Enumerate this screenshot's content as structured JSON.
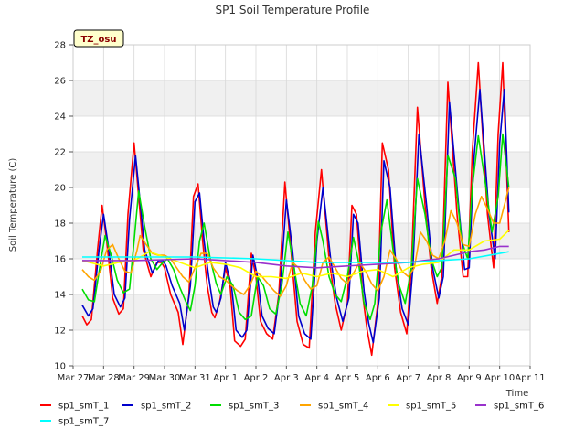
{
  "chart_data": {
    "type": "line",
    "title": "SP1 Soil Temperature Profile",
    "xlabel": "Time",
    "ylabel": "Soil Temperature (C)",
    "badge": "TZ_osu",
    "ylim": [
      10,
      28
    ],
    "yticks": [
      10,
      12,
      14,
      16,
      18,
      20,
      22,
      24,
      26,
      28
    ],
    "xlim": [
      0,
      15
    ],
    "xticks": [
      {
        "x": 0,
        "label": "Mar 27"
      },
      {
        "x": 1,
        "label": "Mar 28"
      },
      {
        "x": 2,
        "label": "Mar 29"
      },
      {
        "x": 3,
        "label": "Mar 30"
      },
      {
        "x": 4,
        "label": "Mar 31"
      },
      {
        "x": 5,
        "label": "Apr 1"
      },
      {
        "x": 6,
        "label": "Apr 2"
      },
      {
        "x": 7,
        "label": "Apr 3"
      },
      {
        "x": 8,
        "label": "Apr 4"
      },
      {
        "x": 9,
        "label": "Apr 5"
      },
      {
        "x": 10,
        "label": "Apr 6"
      },
      {
        "x": 11,
        "label": "Apr 7"
      },
      {
        "x": 12,
        "label": "Apr 8"
      },
      {
        "x": 13,
        "label": "Apr 9"
      },
      {
        "x": 14,
        "label": "Apr 10"
      },
      {
        "x": 15,
        "label": "Apr 11"
      }
    ],
    "series": [
      {
        "name": "sp1_smT_1",
        "color": "#ff0000",
        "x": [
          0.3,
          0.45,
          0.6,
          0.8,
          0.95,
          1.1,
          1.3,
          1.5,
          1.65,
          1.8,
          2.0,
          2.15,
          2.3,
          2.55,
          2.75,
          2.9,
          3.0,
          3.2,
          3.45,
          3.6,
          3.8,
          3.95,
          4.1,
          4.25,
          4.4,
          4.55,
          4.65,
          4.8,
          5.0,
          5.15,
          5.3,
          5.5,
          5.65,
          5.85,
          6.0,
          6.15,
          6.35,
          6.55,
          6.75,
          6.95,
          7.15,
          7.35,
          7.55,
          7.75,
          7.95,
          8.15,
          8.4,
          8.6,
          8.8,
          9.0,
          9.15,
          9.3,
          9.5,
          9.65,
          9.8,
          10.0,
          10.15,
          10.35,
          10.55,
          10.75,
          10.95,
          11.1,
          11.3,
          11.55,
          11.75,
          11.95,
          12.1,
          12.3,
          12.6,
          12.8,
          12.95,
          13.1,
          13.3,
          13.6,
          13.8,
          13.95,
          14.1,
          14.3
        ],
        "y": [
          12.8,
          12.3,
          12.6,
          16.5,
          19.0,
          17.0,
          13.8,
          12.9,
          13.2,
          18.5,
          22.5,
          19.5,
          16.5,
          15.0,
          15.8,
          15.8,
          15.5,
          14.0,
          13.0,
          11.2,
          14.0,
          19.5,
          20.2,
          17.0,
          14.5,
          13.0,
          12.7,
          13.5,
          15.5,
          14.5,
          11.4,
          11.1,
          11.5,
          16.3,
          15.0,
          12.5,
          11.8,
          11.5,
          14.0,
          20.3,
          16.5,
          12.5,
          11.2,
          11.0,
          17.5,
          21.0,
          16.0,
          13.5,
          12.0,
          13.5,
          19.0,
          18.5,
          14.0,
          12.0,
          10.6,
          13.5,
          22.5,
          21.0,
          15.5,
          13.0,
          11.8,
          15.5,
          24.5,
          19.0,
          15.5,
          13.5,
          15.0,
          25.9,
          18.5,
          15.0,
          15.0,
          22.0,
          27.0,
          18.5,
          15.5,
          23.0,
          27.0,
          17.5
        ]
      },
      {
        "name": "sp1_smT_2",
        "color": "#0000cc",
        "x": [
          0.3,
          0.5,
          0.65,
          0.85,
          1.0,
          1.15,
          1.35,
          1.55,
          1.7,
          1.85,
          2.05,
          2.2,
          2.35,
          2.6,
          2.8,
          2.95,
          3.05,
          3.25,
          3.5,
          3.65,
          3.85,
          4.0,
          4.15,
          4.3,
          4.45,
          4.6,
          4.7,
          4.85,
          5.0,
          5.2,
          5.35,
          5.55,
          5.7,
          5.9,
          6.05,
          6.2,
          6.4,
          6.6,
          6.8,
          7.0,
          7.2,
          7.4,
          7.6,
          7.8,
          8.0,
          8.2,
          8.45,
          8.65,
          8.85,
          9.05,
          9.2,
          9.35,
          9.55,
          9.7,
          9.85,
          10.05,
          10.2,
          10.4,
          10.6,
          10.8,
          11.0,
          11.15,
          11.35,
          11.6,
          11.8,
          12.0,
          12.15,
          12.35,
          12.65,
          12.85,
          13.0,
          13.15,
          13.35,
          13.65,
          13.85,
          14.0,
          14.15,
          14.3
        ],
        "y": [
          13.4,
          12.8,
          13.2,
          16.5,
          18.5,
          16.8,
          14.0,
          13.3,
          13.8,
          18.2,
          21.8,
          19.2,
          16.5,
          15.2,
          15.9,
          15.9,
          15.6,
          14.5,
          13.5,
          12.0,
          14.5,
          19.2,
          19.7,
          17.0,
          15.0,
          13.3,
          13.0,
          13.8,
          15.8,
          14.5,
          12.0,
          11.6,
          12.0,
          16.2,
          15.0,
          12.8,
          12.1,
          11.8,
          14.5,
          19.3,
          16.5,
          12.8,
          11.8,
          11.5,
          17.0,
          20.0,
          16.0,
          13.8,
          12.5,
          13.8,
          18.5,
          18.0,
          14.2,
          12.4,
          11.3,
          13.8,
          21.5,
          20.0,
          15.5,
          13.2,
          12.3,
          15.5,
          23.0,
          19.0,
          15.5,
          13.8,
          15.0,
          24.8,
          19.0,
          15.4,
          15.5,
          21.5,
          25.5,
          18.5,
          16.0,
          22.5,
          25.5,
          18.6
        ]
      },
      {
        "name": "sp1_smT_3",
        "color": "#00dd00",
        "x": [
          0.3,
          0.5,
          0.7,
          0.9,
          1.05,
          1.25,
          1.45,
          1.65,
          1.85,
          2.0,
          2.15,
          2.35,
          2.55,
          2.75,
          2.95,
          3.1,
          3.3,
          3.5,
          3.7,
          3.85,
          4.0,
          4.15,
          4.3,
          4.5,
          4.7,
          4.85,
          5.05,
          5.25,
          5.45,
          5.65,
          5.85,
          6.05,
          6.25,
          6.45,
          6.65,
          6.85,
          7.05,
          7.25,
          7.45,
          7.65,
          7.85,
          8.05,
          8.2,
          8.4,
          8.6,
          8.8,
          9.0,
          9.2,
          9.35,
          9.55,
          9.75,
          9.9,
          10.1,
          10.3,
          10.5,
          10.7,
          10.9,
          11.1,
          11.3,
          11.55,
          11.75,
          11.95,
          12.1,
          12.3,
          12.55,
          12.75,
          12.95,
          13.1,
          13.3,
          13.55,
          13.75,
          13.95,
          14.1,
          14.3
        ],
        "y": [
          14.3,
          13.7,
          13.6,
          15.8,
          17.3,
          16.2,
          14.8,
          14.1,
          14.3,
          17.0,
          19.8,
          17.8,
          16.0,
          15.4,
          15.8,
          16.0,
          15.4,
          14.4,
          13.6,
          13.1,
          14.5,
          17.0,
          18.0,
          16.0,
          14.6,
          14.0,
          15.0,
          14.5,
          13.0,
          12.6,
          12.8,
          15.0,
          14.5,
          13.2,
          12.9,
          14.5,
          17.5,
          15.5,
          13.5,
          12.8,
          14.5,
          18.1,
          17.0,
          15.0,
          14.0,
          13.6,
          15.0,
          17.2,
          16.0,
          13.5,
          12.6,
          13.5,
          17.5,
          19.3,
          16.5,
          14.5,
          13.5,
          15.5,
          20.5,
          18.5,
          16.0,
          15.0,
          15.5,
          21.8,
          20.5,
          17.0,
          16.0,
          20.0,
          22.9,
          20.0,
          17.5,
          19.5,
          23.0,
          20.0
        ]
      },
      {
        "name": "sp1_smT_4",
        "color": "#ffa500",
        "x": [
          0.3,
          0.5,
          0.7,
          0.9,
          1.1,
          1.3,
          1.5,
          1.7,
          1.9,
          2.1,
          2.2,
          2.4,
          2.6,
          2.8,
          3.0,
          3.2,
          3.4,
          3.6,
          3.8,
          4.0,
          4.2,
          4.4,
          4.6,
          4.8,
          5.0,
          5.2,
          5.4,
          5.6,
          5.8,
          6.0,
          6.2,
          6.4,
          6.6,
          6.8,
          7.0,
          7.2,
          7.4,
          7.6,
          7.8,
          8.0,
          8.2,
          8.4,
          8.6,
          8.8,
          9.0,
          9.2,
          9.4,
          9.6,
          9.8,
          10.0,
          10.2,
          10.4,
          10.6,
          10.8,
          11.0,
          11.2,
          11.4,
          11.6,
          11.8,
          12.0,
          12.2,
          12.4,
          12.6,
          12.8,
          13.0,
          13.2,
          13.4,
          13.6,
          13.8,
          14.0,
          14.2,
          14.3
        ],
        "y": [
          15.4,
          15.0,
          14.8,
          15.3,
          16.5,
          16.8,
          16.0,
          15.3,
          15.2,
          16.5,
          17.3,
          16.8,
          16.3,
          16.2,
          16.2,
          16.0,
          15.5,
          15.0,
          14.7,
          15.5,
          16.3,
          16.3,
          15.5,
          15.0,
          14.8,
          14.5,
          14.2,
          14.0,
          14.5,
          15.3,
          15.0,
          14.6,
          14.2,
          13.9,
          14.5,
          15.8,
          15.5,
          14.8,
          14.3,
          14.5,
          15.8,
          16.1,
          15.5,
          14.9,
          14.6,
          15.2,
          15.8,
          15.3,
          14.6,
          14.2,
          15.0,
          16.5,
          16.0,
          15.3,
          15.0,
          15.5,
          17.5,
          17.0,
          16.2,
          16.0,
          17.0,
          18.7,
          18.0,
          16.8,
          16.7,
          18.5,
          19.5,
          18.8,
          18.0,
          18.0,
          19.3,
          20.0
        ]
      },
      {
        "name": "sp1_smT_5",
        "color": "#ffff00",
        "x": [
          0.3,
          1.0,
          1.5,
          2.0,
          2.5,
          3.0,
          3.5,
          4.0,
          4.5,
          5.0,
          5.5,
          6.0,
          6.5,
          7.0,
          7.5,
          8.0,
          8.5,
          9.0,
          9.5,
          10.0,
          10.5,
          11.0,
          11.5,
          12.0,
          12.5,
          13.0,
          13.5,
          14.0,
          14.3
        ],
        "y": [
          15.9,
          15.6,
          15.8,
          15.9,
          16.4,
          16.1,
          15.8,
          15.5,
          15.8,
          15.7,
          15.5,
          15.0,
          15.0,
          14.9,
          15.2,
          15.0,
          15.2,
          15.0,
          15.3,
          15.4,
          15.0,
          15.5,
          15.7,
          15.8,
          16.5,
          16.5,
          17.0,
          17.1,
          17.6
        ]
      },
      {
        "name": "sp1_smT_6",
        "color": "#9932cc",
        "x": [
          0.3,
          1.0,
          2.0,
          3.0,
          4.0,
          5.0,
          6.0,
          7.0,
          8.0,
          9.0,
          10.0,
          11.0,
          11.5,
          12.0,
          12.5,
          13.0,
          13.5,
          14.0,
          14.3
        ],
        "y": [
          15.9,
          15.9,
          15.9,
          15.95,
          16.0,
          15.9,
          15.8,
          15.6,
          15.5,
          15.6,
          15.7,
          15.8,
          15.9,
          16.0,
          16.2,
          16.4,
          16.5,
          16.7,
          16.7
        ]
      },
      {
        "name": "sp1_smT_7",
        "color": "#00ffff",
        "x": [
          0.3,
          2.0,
          4.0,
          6.0,
          8.0,
          10.0,
          11.0,
          12.0,
          13.0,
          14.0,
          14.3
        ],
        "y": [
          16.1,
          16.1,
          16.1,
          16.0,
          15.8,
          15.8,
          15.8,
          15.9,
          16.0,
          16.3,
          16.4
        ]
      }
    ]
  }
}
